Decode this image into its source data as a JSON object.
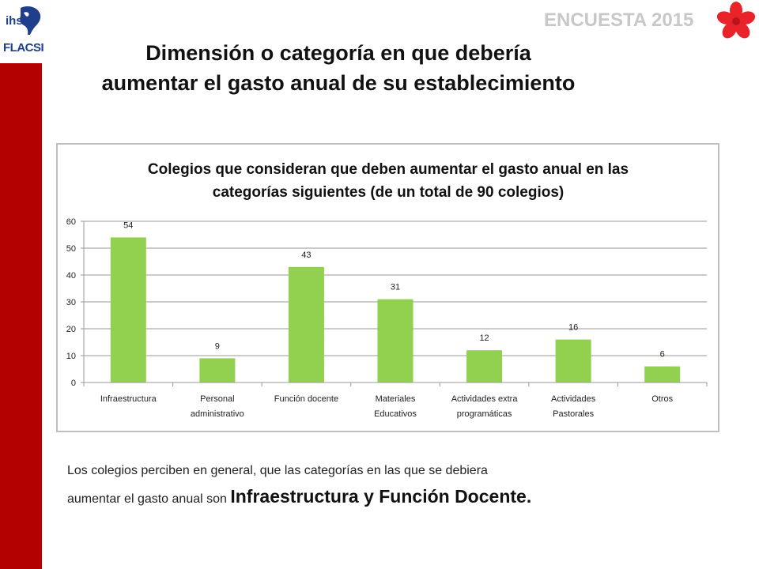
{
  "header": {
    "logo_text_top": "ihs",
    "logo_text_bottom": "FLACSI",
    "encuesta": "ENCUESTA 2015"
  },
  "title": {
    "line1": "Dimensión o categoría en que debería",
    "line2": "aumentar el gasto anual de su establecimiento"
  },
  "chart_data": {
    "type": "bar",
    "title_line1": "Colegios que consideran que deben aumentar el gasto anual  en las",
    "title_line2": "categorías siguientes (de un total de 90 colegios)",
    "categories": [
      [
        "Infraestructura"
      ],
      [
        "Personal",
        "administrativo"
      ],
      [
        "Función docente"
      ],
      [
        "Materiales",
        "Educativos"
      ],
      [
        "Actividades extra",
        "programáticas"
      ],
      [
        "Actividades",
        "Pastorales"
      ],
      [
        "Otros"
      ]
    ],
    "values": [
      54,
      9,
      43,
      31,
      12,
      16,
      6
    ],
    "data_labels": [
      "54",
      "9",
      "43",
      "31",
      "12",
      "16",
      "6"
    ],
    "yticks": [
      "0",
      "10",
      "20",
      "30",
      "40",
      "50",
      "60"
    ],
    "ylim": [
      0,
      60
    ],
    "grid": true,
    "bar_color": "#92d050",
    "grid_color": "#9a9a9a"
  },
  "footer": {
    "line1": "Los colegios perciben  en general, que las categorías en las que se debiera",
    "line2_normal": "aumentar el gasto anual son ",
    "line2_emph": "Infraestructura y Función Docente."
  },
  "colors": {
    "sidebar": "#b30000",
    "logo_blue": "#1f3f8c",
    "encuesta": "#c8c8c8",
    "flower": "#e8232a"
  }
}
